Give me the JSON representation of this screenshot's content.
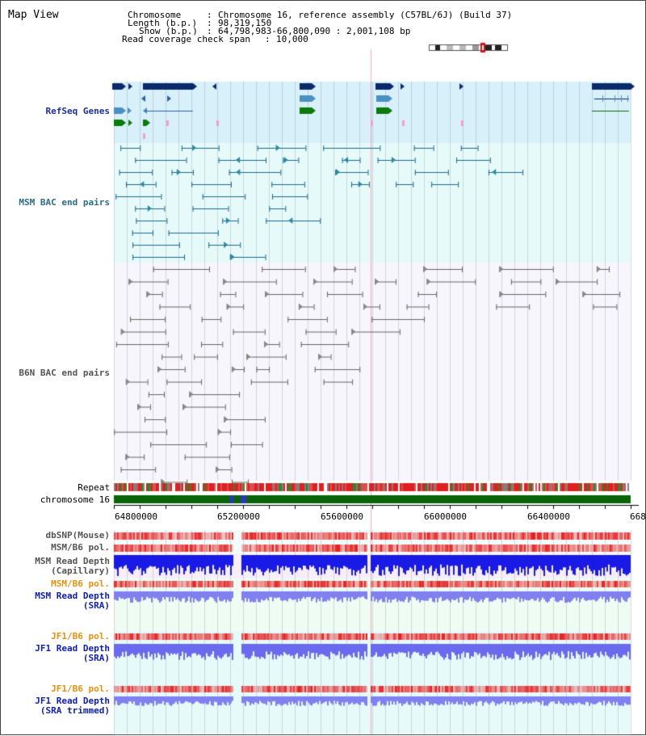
{
  "window": {
    "title": "Map View"
  },
  "info": {
    "chromosome_key": "Chromosome",
    "chromosome_value": "Chromosome 16, reference assembly (C57BL/6J) (Build 37)",
    "length_key": "Length (b.p.)",
    "length_value": "98,319,150",
    "show_key": "Show (b.p.)",
    "show_value": "64,798,983-66,800,090 : 2,001,108 bp",
    "coverage_key": "Read coverage check span",
    "coverage_value": "10,000"
  },
  "tracks": {
    "refseq": "RefSeq Genes",
    "msm_bac": "MSM BAC end pairs",
    "b6n_bac": "B6N BAC end pairs",
    "repeat": "Repeat",
    "chromosome": "chromosome 16",
    "dbsnp": "dbSNP(Mouse)",
    "msm_b6_pol_1": "MSM/B6 pol.",
    "msm_read_depth_cap_1": "MSM Read Depth",
    "msm_read_depth_cap_2": "(Capillary)",
    "msm_b6_pol_2": "MSM/B6 pol.",
    "msm_read_depth_sra_1": "MSM Read Depth",
    "msm_read_depth_sra_2": "(SRA)",
    "jf1_b6_pol_1": "JF1/B6 pol.",
    "jf1_read_depth_sra_1": "JF1 Read Depth",
    "jf1_read_depth_sra_2": "(SRA)",
    "jf1_b6_pol_2": "JF1/B6 pol.",
    "jf1_read_depth_trim_1": "JF1 Read Depth",
    "jf1_read_depth_trim_2": "(SRA trimmed)"
  },
  "axis": {
    "ticks": [
      "64800000",
      "65200000",
      "65600000",
      "66000000",
      "66400000",
      "668"
    ]
  },
  "colors": {
    "refseq_bg": "#d8f0fa",
    "msm_bg": "#e6fafa",
    "b6n_bg": "#f6f6fc",
    "chromosome_bar": "#0a640a",
    "pol_red": "#e82020",
    "depth_blue": "#1a1ae6",
    "depth_light_blue": "#8080f0"
  }
}
